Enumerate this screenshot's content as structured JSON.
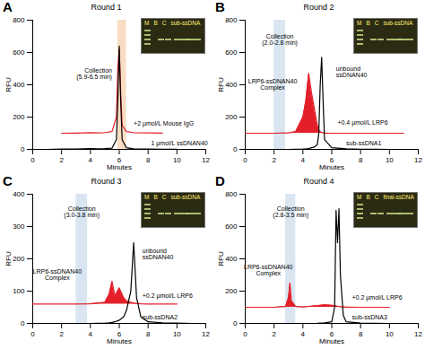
{
  "chart_data": [
    {
      "type": "line",
      "panel": "A",
      "title": "Round 1",
      "x_label": "Minutes",
      "y_label": "RFU",
      "x": [
        0,
        1,
        2,
        3,
        4,
        4.5,
        5,
        5.5,
        5.8,
        5.9,
        6.0,
        6.1,
        6.2,
        6.5,
        7,
        8,
        9,
        10,
        11
      ],
      "series": [
        {
          "name": "1 μmol/L ssDNAN40",
          "color": "#000000",
          "type": "line",
          "values": [
            0,
            0,
            2,
            2,
            5,
            3,
            5,
            8,
            60,
            300,
            640,
            300,
            60,
            10,
            3,
            2,
            1,
            1,
            null
          ]
        },
        {
          "name": "+2 μmol/L Mouse IgG",
          "color": "#e3202a",
          "type": "line",
          "values": [
            null,
            null,
            100,
            101,
            103,
            102,
            104,
            110,
            200,
            500,
            620,
            350,
            150,
            110,
            104,
            102,
            101,
            null,
            null
          ]
        }
      ],
      "xlim": [
        0,
        12
      ],
      "xticks": [
        0,
        2,
        4,
        6,
        8,
        10,
        12
      ],
      "ylim": [
        0,
        800
      ],
      "yticks": [
        0,
        200,
        400,
        600,
        800
      ],
      "collection": {
        "label": "Collection (5.9-6.5 min)",
        "range": [
          5.9,
          6.5
        ]
      },
      "annotations": [],
      "inset_labels": [
        "M",
        "B",
        "C",
        "sub-ssDNA"
      ]
    },
    {
      "type": "line",
      "panel": "B",
      "title": "Round 2",
      "x_label": "Minutes",
      "y_label": "RFU",
      "x": [
        0,
        1,
        2,
        3,
        3.5,
        4,
        4.2,
        4.4,
        4.6,
        4.8,
        5,
        5.1,
        5.2,
        5.3,
        5.4,
        5.5,
        6,
        7,
        8,
        9,
        10,
        11
      ],
      "series": [
        {
          "name": "sub-ssDNA1",
          "color": "#000000",
          "type": "line",
          "values": [
            0,
            0,
            0,
            0,
            1,
            2,
            3,
            5,
            10,
            15,
            30,
            100,
            400,
            570,
            300,
            60,
            10,
            3,
            1,
            1,
            0,
            0
          ]
        },
        {
          "name": "+0.4 μmol/L LRP6",
          "color": "#e3202a",
          "type": "area",
          "values": [
            100,
            100,
            100,
            102,
            110,
            200,
            300,
            470,
            350,
            250,
            150,
            120,
            110,
            105,
            102,
            101,
            100,
            100,
            100,
            100,
            100,
            100
          ]
        }
      ],
      "xlim": [
        0,
        12
      ],
      "xticks": [
        0,
        2,
        4,
        6,
        8,
        10,
        12
      ],
      "ylim": [
        0,
        800
      ],
      "yticks": [
        0,
        200,
        400,
        600,
        800
      ],
      "collection": {
        "label": "Collection (2.0-2.8 min)",
        "range": [
          2.0,
          2.8
        ]
      },
      "annotations": [
        "LRP6-ssDNAN40 Complex",
        "unbound ssDNAN40"
      ],
      "inset_labels": [
        "M",
        "B",
        "C",
        "sub-ssDNA"
      ]
    },
    {
      "type": "line",
      "panel": "C",
      "title": "Round 3",
      "x_label": "Minutes",
      "y_label": "RFU",
      "x": [
        0,
        1,
        2,
        3,
        4,
        5,
        5.3,
        5.5,
        5.7,
        6,
        6.3,
        6.5,
        6.8,
        7,
        7.2,
        7.5,
        8,
        9,
        10,
        11
      ],
      "series": [
        {
          "name": "sub-ssDNA2",
          "color": "#000000",
          "type": "line",
          "values": [
            0,
            0,
            0,
            0,
            0,
            1,
            2,
            3,
            5,
            10,
            20,
            40,
            100,
            250,
            80,
            20,
            5,
            2,
            1,
            0
          ]
        },
        {
          "name": "+0.2 μmol/L LRP6",
          "color": "#e3202a",
          "type": "area",
          "values": [
            60,
            60,
            60,
            60,
            61,
            65,
            90,
            130,
            85,
            110,
            80,
            70,
            65,
            63,
            62,
            61,
            60,
            60,
            60,
            null
          ]
        }
      ],
      "xlim": [
        0,
        12
      ],
      "xticks": [
        0,
        2,
        4,
        6,
        8,
        10,
        12
      ],
      "ylim": [
        0,
        400
      ],
      "yticks": [
        0,
        100,
        200,
        300,
        400
      ],
      "collection": {
        "label": "Collection (3.0-3.8 min)",
        "range": [
          3.0,
          3.8
        ]
      },
      "annotations": [
        "LRP6-ssDNAN40 Complex",
        "unbound ssDNAN40"
      ],
      "inset_labels": [
        "M",
        "B",
        "C",
        "sub-ssDNA"
      ]
    },
    {
      "type": "line",
      "panel": "D",
      "title": "Round 4",
      "x_label": "Minutes",
      "y_label": "RFU",
      "x": [
        0,
        1,
        2,
        2.8,
        3.0,
        3.1,
        3.2,
        3.5,
        4,
        5,
        5.5,
        6,
        6.2,
        6.3,
        6.4,
        6.5,
        6.6,
        6.8,
        7,
        8,
        9,
        10,
        11
      ],
      "series": [
        {
          "name": "sub-ssDNA3",
          "color": "#000000",
          "type": "line",
          "values": [
            0,
            0,
            0,
            0,
            0,
            0,
            0,
            0,
            0,
            1,
            3,
            10,
            100,
            700,
            500,
            710,
            300,
            50,
            10,
            2,
            1,
            0,
            0
          ]
        },
        {
          "name": "+0.2 μmol/L LRP6",
          "color": "#e3202a",
          "type": "area",
          "values": [
            100,
            100,
            100,
            105,
            160,
            250,
            140,
            105,
            102,
            110,
            115,
            112,
            110,
            108,
            106,
            105,
            103,
            102,
            101,
            100,
            100,
            100,
            null
          ]
        }
      ],
      "xlim": [
        0,
        12
      ],
      "xticks": [
        0,
        2,
        4,
        6,
        8,
        10,
        12
      ],
      "ylim": [
        0,
        800
      ],
      "yticks": [
        0,
        200,
        400,
        600,
        800
      ],
      "collection": {
        "label": "Collection (2.8-3.5 min)",
        "range": [
          2.8,
          3.5
        ]
      },
      "annotations": [
        "LRP6-ssDNAN40 Complex"
      ],
      "inset_labels": [
        "M",
        "B",
        "C",
        "final-ssDNA"
      ]
    }
  ]
}
